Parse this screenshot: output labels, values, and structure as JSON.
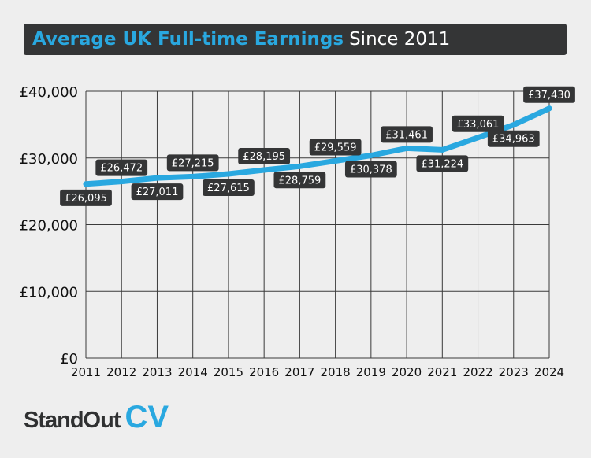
{
  "header": {
    "title_main": "Average UK Full-time Earnings",
    "title_sub": "Since 2011"
  },
  "logo": {
    "text_main": "StandOut",
    "text_accent": "CV"
  },
  "chart_data": {
    "type": "line",
    "x": [
      2011,
      2012,
      2013,
      2014,
      2015,
      2016,
      2017,
      2018,
      2019,
      2020,
      2021,
      2022,
      2023,
      2024
    ],
    "series": [
      {
        "values": [
          26095,
          26472,
          27011,
          27215,
          27615,
          28195,
          28759,
          29559,
          30378,
          31461,
          31224,
          33061,
          34963,
          37430
        ],
        "labels": [
          "£26,095",
          "£26,472",
          "£27,011",
          "£27,215",
          "£27,615",
          "£28,195",
          "£28,759",
          "£29,559",
          "£30,378",
          "£31,461",
          "£31,224",
          "£33,061",
          "£34,963",
          "£37,430"
        ]
      }
    ],
    "ylim": [
      0,
      40000
    ],
    "y_ticks": [
      0,
      10000,
      20000,
      30000,
      40000
    ],
    "y_tick_labels": [
      "£0",
      "£10,000",
      "£20,000",
      "£30,000",
      "£40,000"
    ],
    "x_tick_labels": [
      "2011",
      "2012",
      "2013",
      "2014",
      "2015",
      "2016",
      "2017",
      "2018",
      "2019",
      "2020",
      "2021",
      "2022",
      "2023",
      "2024"
    ],
    "grid": true,
    "legend": "none",
    "colors": {
      "line": "#29a8e0",
      "label_bg": "#343536",
      "label_text": "#ffffff",
      "grid": "#3a3a3a"
    }
  }
}
